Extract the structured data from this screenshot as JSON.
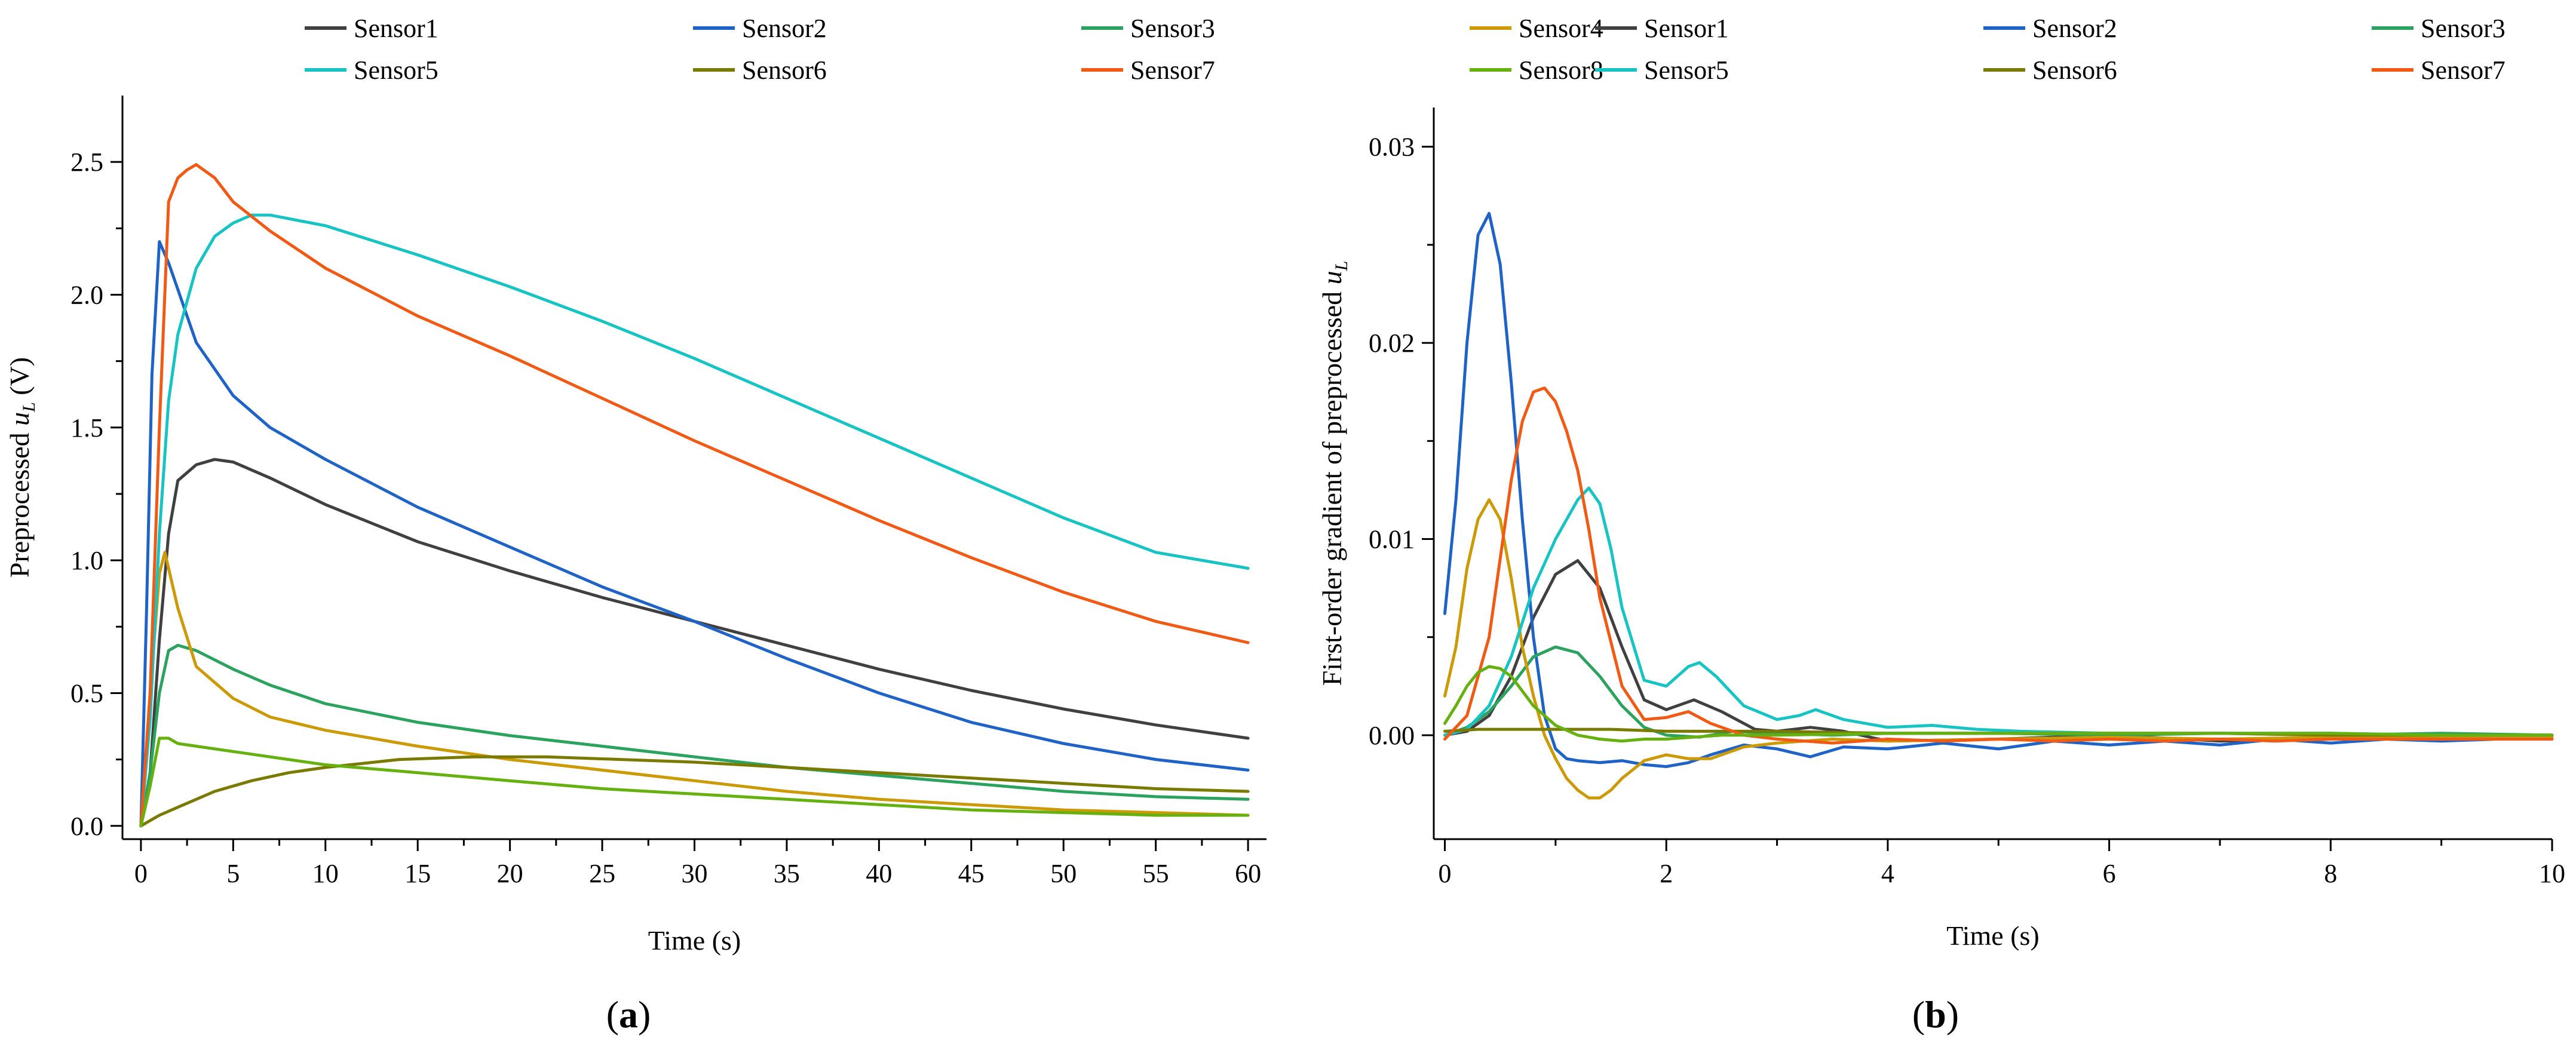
{
  "colors": {
    "Sensor1": "#404040",
    "Sensor2": "#1f63c6",
    "Sensor3": "#2ca25f",
    "Sensor4": "#cc9a06",
    "Sensor5": "#17c3c3",
    "Sensor6": "#7a7a00",
    "Sensor7": "#f05a14",
    "Sensor8": "#66b010"
  },
  "chart_data": [
    {
      "id": "a",
      "type": "line",
      "panel_label": "a",
      "xlabel": "Time (s)",
      "ylabel_prefix": "Preprocessed ",
      "ylabel_var": "u",
      "ylabel_sub": "L",
      "ylabel_suffix": " (V)",
      "xlim": [
        -1,
        61
      ],
      "ylim": [
        -0.05,
        2.75
      ],
      "xticks": [
        0,
        5,
        10,
        15,
        20,
        25,
        30,
        35,
        40,
        45,
        50,
        55,
        60
      ],
      "yticks": [
        0.0,
        0.5,
        1.0,
        1.5,
        2.0,
        2.5
      ],
      "ytick_labels": [
        "0.0",
        "0.5",
        "1.0",
        "1.5",
        "2.0",
        "2.5"
      ],
      "legend_position": "top",
      "series": [
        {
          "name": "Sensor1",
          "x": [
            0,
            0.5,
            1,
            1.5,
            2,
            3,
            4,
            5,
            7,
            10,
            15,
            20,
            25,
            30,
            35,
            40,
            45,
            50,
            55,
            60
          ],
          "y": [
            0,
            0.2,
            0.7,
            1.1,
            1.3,
            1.36,
            1.38,
            1.37,
            1.31,
            1.21,
            1.07,
            0.96,
            0.86,
            0.77,
            0.68,
            0.59,
            0.51,
            0.44,
            0.38,
            0.33
          ]
        },
        {
          "name": "Sensor2",
          "x": [
            0,
            0.3,
            0.6,
            1,
            1.5,
            2,
            3,
            5,
            7,
            10,
            15,
            20,
            25,
            30,
            35,
            40,
            45,
            50,
            55,
            60
          ],
          "y": [
            0,
            0.8,
            1.7,
            2.2,
            2.12,
            2.02,
            1.82,
            1.62,
            1.5,
            1.38,
            1.2,
            1.05,
            0.9,
            0.77,
            0.63,
            0.5,
            0.39,
            0.31,
            0.25,
            0.21
          ]
        },
        {
          "name": "Sensor3",
          "x": [
            0,
            0.5,
            1,
            1.5,
            2,
            3,
            5,
            7,
            10,
            15,
            20,
            25,
            30,
            35,
            40,
            45,
            50,
            55,
            60
          ],
          "y": [
            0,
            0.2,
            0.5,
            0.66,
            0.68,
            0.66,
            0.59,
            0.53,
            0.46,
            0.39,
            0.34,
            0.3,
            0.26,
            0.22,
            0.19,
            0.16,
            0.13,
            0.11,
            0.1
          ]
        },
        {
          "name": "Sensor4",
          "x": [
            0,
            0.5,
            1,
            1.3,
            2,
            3,
            5,
            7,
            10,
            15,
            20,
            25,
            30,
            35,
            40,
            45,
            50,
            55,
            60
          ],
          "y": [
            0,
            0.5,
            0.95,
            1.03,
            0.82,
            0.6,
            0.48,
            0.41,
            0.36,
            0.3,
            0.25,
            0.21,
            0.17,
            0.13,
            0.1,
            0.08,
            0.06,
            0.05,
            0.04
          ]
        },
        {
          "name": "Sensor5",
          "x": [
            0,
            0.5,
            1,
            1.5,
            2,
            3,
            4,
            5,
            6,
            7,
            10,
            15,
            20,
            25,
            30,
            35,
            40,
            45,
            50,
            55,
            60
          ],
          "y": [
            0,
            0.4,
            1.1,
            1.6,
            1.85,
            2.1,
            2.22,
            2.27,
            2.3,
            2.3,
            2.26,
            2.15,
            2.03,
            1.9,
            1.76,
            1.61,
            1.46,
            1.31,
            1.16,
            1.03,
            0.97
          ]
        },
        {
          "name": "Sensor6",
          "x": [
            0,
            1,
            2,
            4,
            6,
            8,
            10,
            14,
            18,
            22,
            26,
            30,
            35,
            40,
            45,
            50,
            55,
            60
          ],
          "y": [
            0,
            0.04,
            0.07,
            0.13,
            0.17,
            0.2,
            0.22,
            0.25,
            0.26,
            0.26,
            0.25,
            0.24,
            0.22,
            0.2,
            0.18,
            0.16,
            0.14,
            0.13
          ]
        },
        {
          "name": "Sensor7",
          "x": [
            0,
            0.5,
            1,
            1.5,
            2,
            2.5,
            3,
            4,
            5,
            7,
            10,
            15,
            20,
            25,
            30,
            35,
            40,
            45,
            50,
            55,
            60
          ],
          "y": [
            0,
            0.5,
            1.5,
            2.35,
            2.44,
            2.47,
            2.49,
            2.44,
            2.35,
            2.24,
            2.1,
            1.92,
            1.77,
            1.61,
            1.45,
            1.3,
            1.15,
            1.01,
            0.88,
            0.77,
            0.69
          ]
        },
        {
          "name": "Sensor8",
          "x": [
            0,
            0.5,
            1,
            1.5,
            2,
            3,
            5,
            7,
            10,
            15,
            20,
            25,
            30,
            35,
            40,
            45,
            50,
            55,
            60
          ],
          "y": [
            0,
            0.15,
            0.33,
            0.33,
            0.31,
            0.3,
            0.28,
            0.26,
            0.23,
            0.2,
            0.17,
            0.14,
            0.12,
            0.1,
            0.08,
            0.06,
            0.05,
            0.04,
            0.04
          ]
        }
      ]
    },
    {
      "id": "b",
      "type": "line",
      "panel_label": "b",
      "xlabel": "Time (s)",
      "ylabel_prefix": "First-order gradient of preprocessed ",
      "ylabel_var": "u",
      "ylabel_sub": "L",
      "ylabel_suffix": "",
      "xlim": [
        -0.1,
        10
      ],
      "ylim": [
        -0.0053,
        0.032
      ],
      "xticks": [
        0,
        2,
        4,
        6,
        8,
        10
      ],
      "yticks": [
        0.0,
        0.01,
        0.02,
        0.03
      ],
      "ytick_labels": [
        "0.00",
        "0.01",
        "0.02",
        "0.03"
      ],
      "legend_position": "top",
      "series": [
        {
          "name": "Sensor1",
          "x": [
            0,
            0.2,
            0.4,
            0.6,
            0.8,
            1.0,
            1.2,
            1.4,
            1.6,
            1.8,
            2.0,
            2.25,
            2.5,
            2.8,
            3.0,
            3.3,
            3.6,
            4.0,
            5,
            6,
            7,
            8,
            9,
            10
          ],
          "y": [
            0,
            0.0002,
            0.001,
            0.003,
            0.006,
            0.0082,
            0.0089,
            0.0075,
            0.0045,
            0.0018,
            0.0013,
            0.0018,
            0.0012,
            0.0003,
            0.0002,
            0.0004,
            0.0002,
            -0.0003,
            -0.0002,
            0,
            -0.0003,
            -0.0002,
            0,
            0
          ]
        },
        {
          "name": "Sensor2",
          "x": [
            0,
            0.1,
            0.2,
            0.3,
            0.4,
            0.5,
            0.6,
            0.7,
            0.8,
            0.9,
            1.0,
            1.1,
            1.2,
            1.4,
            1.6,
            1.8,
            2.0,
            2.2,
            2.4,
            2.7,
            3.0,
            3.3,
            3.6,
            4.0,
            4.5,
            5.0,
            5.5,
            6.0,
            6.5,
            7.0,
            7.5,
            8.0,
            8.5,
            9.0,
            9.5,
            10.0
          ],
          "y": [
            0.0062,
            0.012,
            0.02,
            0.0255,
            0.0266,
            0.024,
            0.018,
            0.011,
            0.005,
            0.001,
            -0.0007,
            -0.0012,
            -0.0013,
            -0.0014,
            -0.0013,
            -0.0015,
            -0.0016,
            -0.0014,
            -0.001,
            -0.0005,
            -0.0007,
            -0.0011,
            -0.0006,
            -0.0007,
            -0.0004,
            -0.0007,
            -0.0003,
            -0.0005,
            -0.0003,
            -0.0005,
            -0.0002,
            -0.0004,
            -0.0002,
            -0.0003,
            -0.0002,
            -0.0002
          ]
        },
        {
          "name": "Sensor3",
          "x": [
            0,
            0.2,
            0.4,
            0.6,
            0.8,
            1.0,
            1.2,
            1.4,
            1.6,
            1.8,
            2.0,
            2.3,
            2.6,
            3.0,
            3.5,
            4,
            5,
            6,
            7,
            8,
            9,
            10
          ],
          "y": [
            0,
            0.0004,
            0.0012,
            0.0025,
            0.004,
            0.0045,
            0.0042,
            0.003,
            0.0015,
            0.0004,
            0,
            -0.0001,
            0.0002,
            0.0001,
            0,
            0.0001,
            0.0001,
            0,
            0.0001,
            0,
            0.0001,
            0
          ]
        },
        {
          "name": "Sensor4",
          "x": [
            0,
            0.1,
            0.2,
            0.3,
            0.4,
            0.5,
            0.6,
            0.7,
            0.8,
            0.9,
            1.0,
            1.1,
            1.2,
            1.3,
            1.4,
            1.5,
            1.6,
            1.8,
            2.0,
            2.2,
            2.4,
            2.7,
            3.0,
            3.5,
            4,
            5,
            6,
            7,
            8,
            9,
            10
          ],
          "y": [
            0.002,
            0.0045,
            0.0085,
            0.011,
            0.012,
            0.011,
            0.008,
            0.0045,
            0.002,
            0,
            -0.0012,
            -0.0022,
            -0.0028,
            -0.0032,
            -0.0032,
            -0.0028,
            -0.0022,
            -0.0013,
            -0.001,
            -0.0012,
            -0.0012,
            -0.0006,
            -0.0004,
            -0.0002,
            -0.0003,
            -0.0002,
            -0.0001,
            -0.0002,
            -0.0001,
            -0.0001,
            -0.0001
          ]
        },
        {
          "name": "Sensor5",
          "x": [
            0,
            0.2,
            0.4,
            0.6,
            0.8,
            1.0,
            1.1,
            1.2,
            1.3,
            1.4,
            1.5,
            1.6,
            1.8,
            2.0,
            2.2,
            2.3,
            2.45,
            2.7,
            3.0,
            3.2,
            3.35,
            3.6,
            4.0,
            4.4,
            4.8,
            5.2,
            6,
            7,
            8,
            9,
            10
          ],
          "y": [
            0,
            0.0003,
            0.0015,
            0.004,
            0.0075,
            0.01,
            0.011,
            0.012,
            0.0126,
            0.0118,
            0.0095,
            0.0065,
            0.0028,
            0.0025,
            0.0035,
            0.0037,
            0.003,
            0.0015,
            0.0008,
            0.001,
            0.0013,
            0.0008,
            0.0004,
            0.0005,
            0.0003,
            0.0002,
            0.0001,
            0.0001,
            0.0001,
            0,
            0
          ]
        },
        {
          "name": "Sensor6",
          "x": [
            0,
            0.3,
            0.6,
            1.0,
            1.5,
            2.0,
            3,
            4,
            5,
            6,
            7,
            8,
            9,
            10
          ],
          "y": [
            0.0002,
            0.0003,
            0.0003,
            0.0003,
            0.0003,
            0.0002,
            0.0002,
            0.0001,
            0.0001,
            0.0001,
            0.0001,
            0,
            0,
            0
          ]
        },
        {
          "name": "Sensor7",
          "x": [
            0,
            0.2,
            0.4,
            0.5,
            0.6,
            0.7,
            0.8,
            0.9,
            1.0,
            1.1,
            1.2,
            1.3,
            1.4,
            1.6,
            1.8,
            2.0,
            2.2,
            2.4,
            2.7,
            3.0,
            3.5,
            4.0,
            4.5,
            5,
            5.5,
            6,
            6.5,
            7,
            7.5,
            8,
            8.5,
            9,
            9.5,
            10
          ],
          "y": [
            -0.0002,
            0.001,
            0.005,
            0.009,
            0.013,
            0.016,
            0.0175,
            0.0177,
            0.017,
            0.0155,
            0.0135,
            0.0105,
            0.007,
            0.0025,
            0.0008,
            0.0009,
            0.0012,
            0.0006,
            0,
            -0.0002,
            -0.0004,
            -0.0002,
            -0.0003,
            -0.0002,
            -0.0003,
            -0.0002,
            -0.0003,
            -0.0002,
            -0.0003,
            -0.0002,
            -0.0002,
            -0.0002,
            -0.0002,
            -0.0002
          ]
        },
        {
          "name": "Sensor8",
          "x": [
            0,
            0.1,
            0.2,
            0.3,
            0.4,
            0.5,
            0.6,
            0.8,
            1.0,
            1.2,
            1.4,
            1.6,
            1.8,
            2.0,
            2.5,
            3,
            4,
            5,
            6,
            7,
            8,
            9,
            10
          ],
          "y": [
            0.0006,
            0.0015,
            0.0025,
            0.0032,
            0.0035,
            0.0034,
            0.003,
            0.0015,
            0.0005,
            0,
            -0.0002,
            -0.0003,
            -0.0002,
            -0.0002,
            0,
            0,
            0.0001,
            0.0001,
            0.0001,
            0.0001,
            0.0001,
            0,
            0
          ]
        }
      ]
    }
  ]
}
